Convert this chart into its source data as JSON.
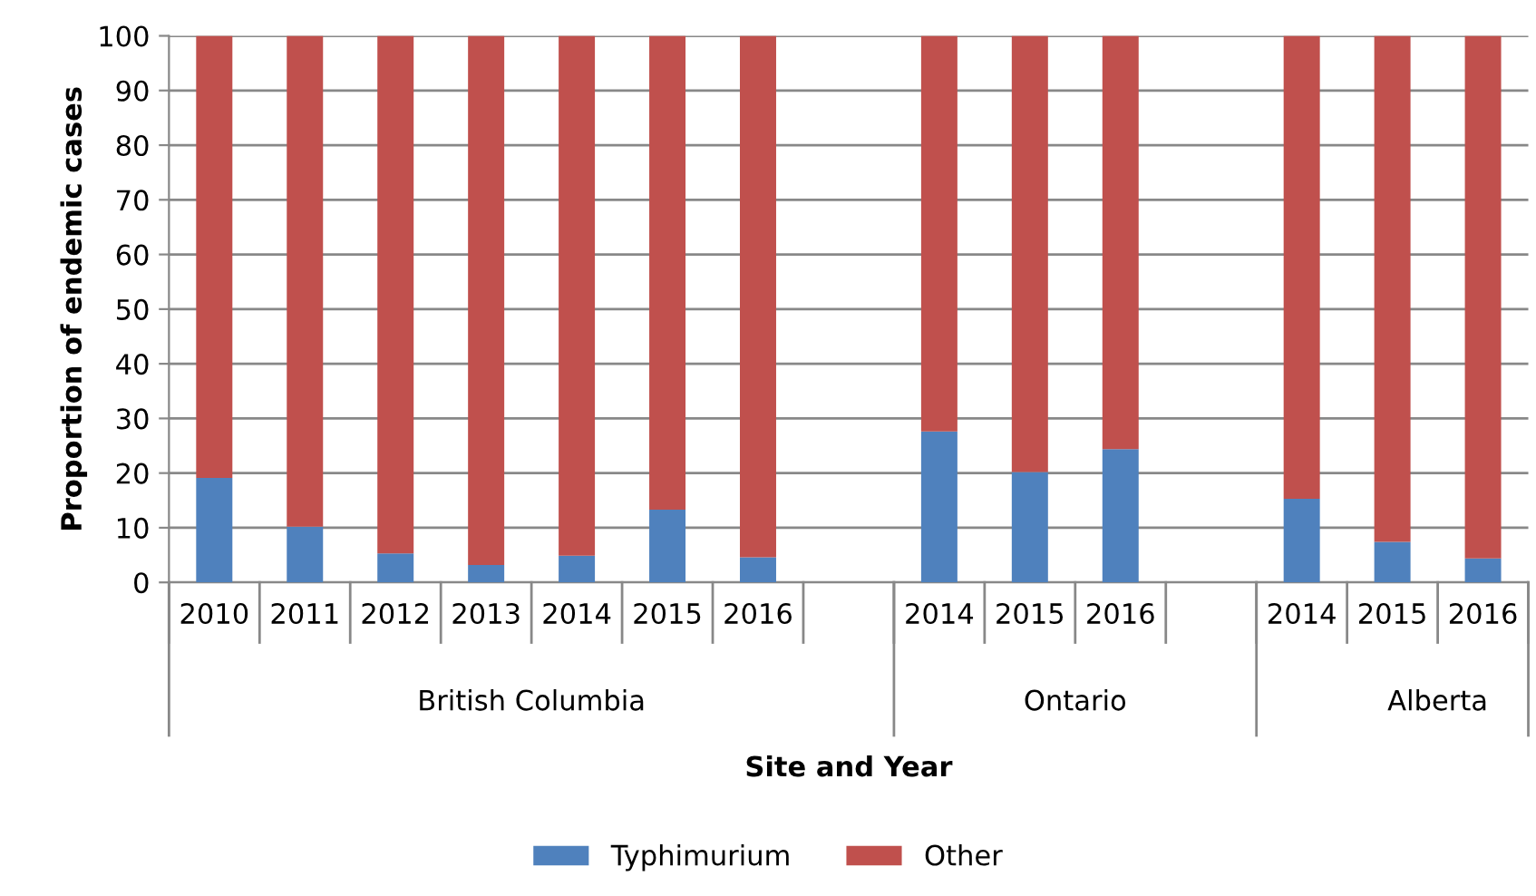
{
  "chart_data": {
    "type": "bar",
    "stacked": true,
    "xlabel": "Site and Year",
    "ylabel": "Proportion of endemic cases",
    "categories": [
      "2010",
      "2011",
      "2012",
      "2013",
      "2014",
      "2015",
      "2016",
      null,
      "2014",
      "2015",
      "2016",
      null,
      "2014",
      "2015",
      "2016"
    ],
    "series": [
      {
        "name": "Typhimurium",
        "color": "#4f81bd",
        "values": [
          19.1,
          10.2,
          5.3,
          3.2,
          4.9,
          13.3,
          4.6,
          null,
          27.6,
          20.2,
          24.4,
          null,
          15.3,
          7.4,
          4.4
        ]
      },
      {
        "name": "Other",
        "color": "#c0504d",
        "values": [
          80.9,
          89.8,
          94.7,
          96.8,
          95.1,
          86.7,
          95.4,
          null,
          72.4,
          79.8,
          75.6,
          null,
          84.7,
          92.6,
          95.6
        ]
      }
    ],
    "annotations": [
      "British Columbia",
      "Ontario",
      "Alberta"
    ],
    "ylim": [
      0,
      100
    ],
    "yticks": [
      0,
      10,
      20,
      30,
      40,
      50,
      60,
      70,
      80,
      90,
      100
    ],
    "grid": "y",
    "legend": "bottom"
  }
}
